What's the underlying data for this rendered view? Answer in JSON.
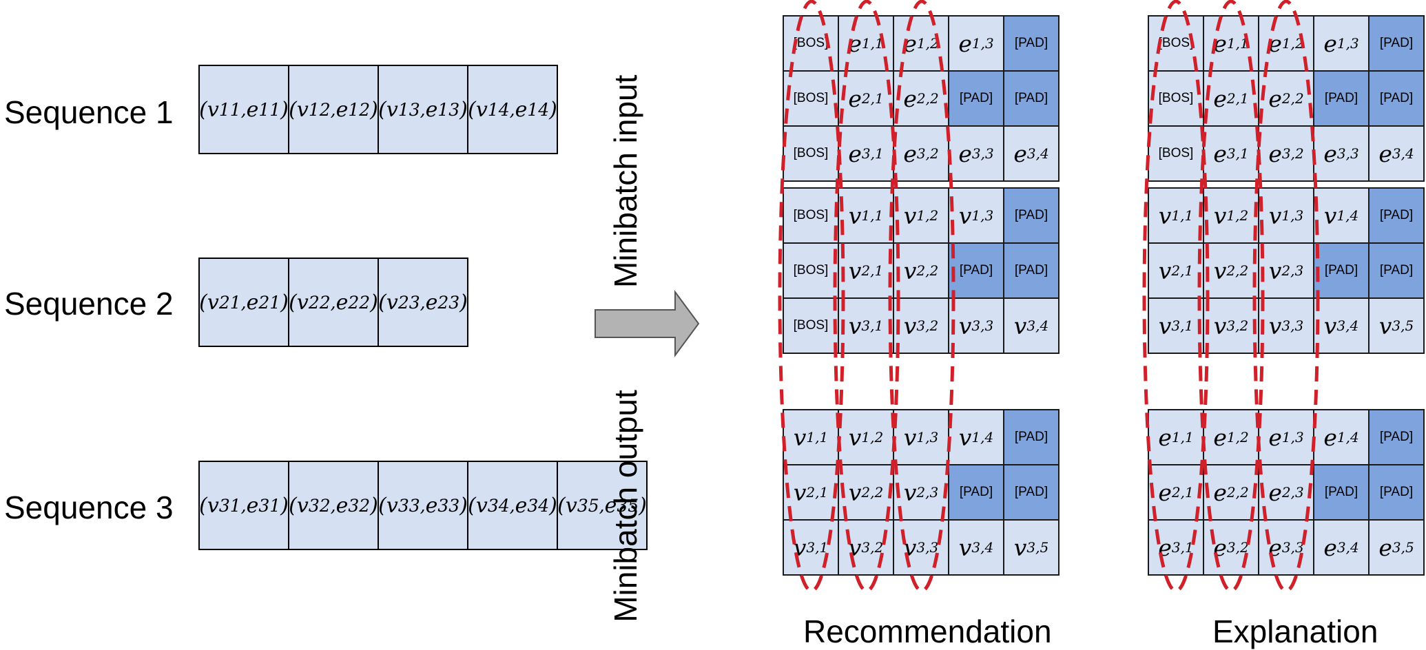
{
  "sequences": [
    {
      "label": "Sequence 1",
      "cells": [
        "(v11,e11)",
        "(v12,e12)",
        "(v13,e13)",
        "(v14,e14)"
      ]
    },
    {
      "label": "Sequence 2",
      "cells": [
        "(v21,e21)",
        "(v22,e22)",
        "(v23,e23)"
      ]
    },
    {
      "label": "Sequence 3",
      "cells": [
        "(v31,e31)",
        "(v32,e32)",
        "(v33,e33)",
        "(v34,e34)",
        "(v35,e35)"
      ]
    }
  ],
  "labels": {
    "minibatch_input": "Minibatch input",
    "minibatch_output": "Minibatch output"
  },
  "panels": [
    {
      "title": "Recommendation",
      "input_blocks": [
        [
          [
            "[BOS]",
            "e1,1",
            "e1,2",
            "e1,3",
            "[PAD]"
          ],
          [
            "[BOS]",
            "e2,1",
            "e2,2",
            "[PAD]",
            "[PAD]"
          ],
          [
            "[BOS]",
            "e3,1",
            "e3,2",
            "e3,3",
            "e3,4"
          ]
        ],
        [
          [
            "[BOS]",
            "v1,1",
            "v1,2",
            "v1,3",
            "[PAD]"
          ],
          [
            "[BOS]",
            "v2,1",
            "v2,2",
            "[PAD]",
            "[PAD]"
          ],
          [
            "[BOS]",
            "v3,1",
            "v3,2",
            "v3,3",
            "v3,4"
          ]
        ]
      ],
      "output_block": [
        [
          "v1,1",
          "v1,2",
          "v1,3",
          "v1,4",
          "[PAD]"
        ],
        [
          "v2,1",
          "v2,2",
          "v2,3",
          "[PAD]",
          "[PAD]"
        ],
        [
          "v3,1",
          "v3,2",
          "v3,3",
          "v3,4",
          "v3,5"
        ]
      ]
    },
    {
      "title": "Explanation",
      "input_blocks": [
        [
          [
            "[BOS]",
            "e1,1",
            "e1,2",
            "e1,3",
            "[PAD]"
          ],
          [
            "[BOS]",
            "e2,1",
            "e2,2",
            "[PAD]",
            "[PAD]"
          ],
          [
            "[BOS]",
            "e3,1",
            "e3,2",
            "e3,3",
            "e3,4"
          ]
        ],
        [
          [
            "v1,1",
            "v1,2",
            "v1,3",
            "v1,4",
            "[PAD]"
          ],
          [
            "v2,1",
            "v2,2",
            "v2,3",
            "[PAD]",
            "[PAD]"
          ],
          [
            "v3,1",
            "v3,2",
            "v3,3",
            "v3,4",
            "v3,5"
          ]
        ]
      ],
      "output_block": [
        [
          "e1,1",
          "e1,2",
          "e1,3",
          "e1,4",
          "[PAD]"
        ],
        [
          "e2,1",
          "e2,2",
          "e2,3",
          "[PAD]",
          "[PAD]"
        ],
        [
          "e3,1",
          "e3,2",
          "e3,3",
          "e3,4",
          "e3,5"
        ]
      ]
    }
  ],
  "colors": {
    "cell_fill": "#d5e1f3",
    "pad_fill": "#7ea3dd",
    "grid_border": "#1a1a1a",
    "arrow_fill": "#b3b3b3",
    "ellipse_stroke": "#d0202a"
  }
}
